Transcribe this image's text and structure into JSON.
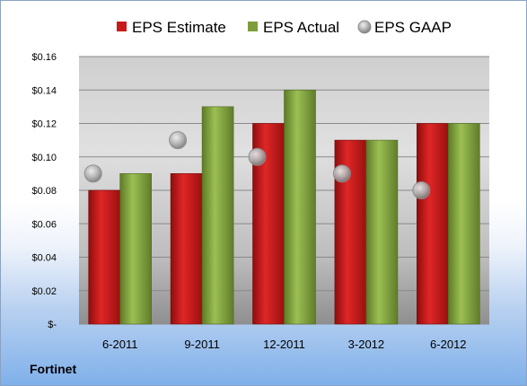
{
  "chart_data": {
    "type": "bar",
    "categories": [
      "6-2011",
      "9-2011",
      "12-2011",
      "3-2012",
      "6-2012"
    ],
    "series": [
      {
        "name": "EPS Estimate",
        "kind": "bar",
        "color": "#c81a1a",
        "values": [
          0.08,
          0.09,
          0.12,
          0.11,
          0.12
        ]
      },
      {
        "name": "EPS Actual",
        "kind": "bar",
        "color": "#7f9d3a",
        "values": [
          0.09,
          0.13,
          0.14,
          0.11,
          0.12
        ]
      },
      {
        "name": "EPS GAAP",
        "kind": "marker",
        "color": "#a8a8a8",
        "values": [
          0.09,
          0.11,
          0.1,
          0.09,
          0.08
        ]
      }
    ],
    "ylim": [
      0,
      0.16
    ],
    "yticks": [
      0,
      0.02,
      0.04,
      0.06,
      0.08,
      0.1,
      0.12,
      0.14,
      0.16
    ],
    "ytick_labels": [
      "$-",
      "$0.02",
      "$0.04",
      "$0.06",
      "$0.08",
      "$0.10",
      "$0.12",
      "$0.14",
      "$0.16"
    ],
    "grid": true,
    "legend_position": "top"
  },
  "footer": {
    "company": "Fortinet"
  }
}
